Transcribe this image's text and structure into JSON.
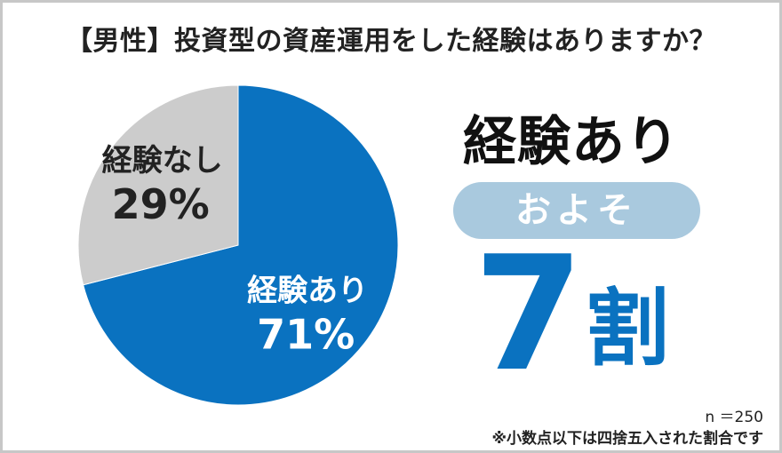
{
  "title": "【男性】投資型の資産運用をした経験はありますか？",
  "chart_data": {
    "type": "pie",
    "slices": [
      {
        "label": "経験あり",
        "value": 71,
        "value_label": "71%",
        "color": "#0a72c0",
        "text_color": "#ffffff"
      },
      {
        "label": "経験なし",
        "value": 29,
        "value_label": "29%",
        "color": "#cccccc",
        "text_color": "#222222"
      }
    ],
    "start": "12 o'clock",
    "direction": "clockwise"
  },
  "highlight": {
    "headline": "経験あり",
    "pill_text": "およそ",
    "number": "7",
    "unit": "割",
    "pill_color": "#a9c9de",
    "number_color": "#0a72c0"
  },
  "footer": {
    "sample_size": "n ＝250",
    "note": "※小数点以下は四捨五入された割合です"
  }
}
